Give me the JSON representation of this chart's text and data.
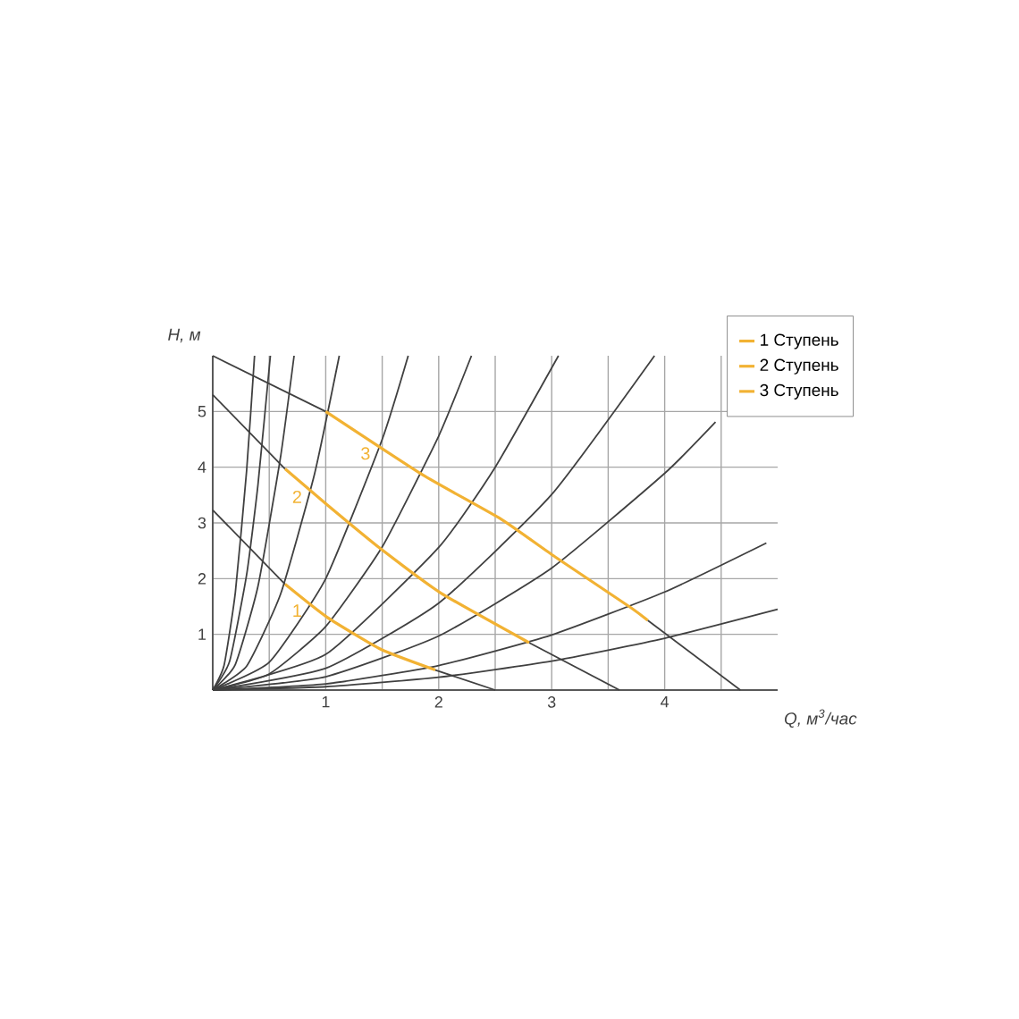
{
  "chart_data": {
    "type": "line",
    "xlabel": "*Q, м$^{3}$/час*",
    "ylabel": "*H, м*",
    "xlim": [
      0,
      5
    ],
    "ylim": [
      0,
      6
    ],
    "xticks": [
      {
        "value": 0.5,
        "label": null
      },
      1,
      {
        "value": 1.5,
        "label": null
      },
      2,
      {
        "value": 2.5,
        "label": null
      },
      3,
      {
        "value": 3.5,
        "label": null
      },
      4,
      {
        "value": 4.5,
        "label": null
      }
    ],
    "yticks": [
      1,
      2,
      3,
      4,
      5
    ],
    "grid": true,
    "legend": "top right",
    "marker": "none",
    "line_style": "solid",
    "series": [
      {
        "color": "#404040",
        "x": [
          0,
          0.1,
          0.2,
          0.3,
          0.37
        ],
        "values": [
          0,
          0.44,
          1.75,
          3.94,
          6.0
        ]
      },
      {
        "color": "#404040",
        "x": [
          0,
          0.15,
          0.3,
          0.4,
          0.51
        ],
        "values": [
          0,
          0.52,
          2.07,
          3.68,
          6.0
        ]
      },
      {
        "color": "#404040",
        "x": [
          0,
          0.2,
          0.4,
          0.6,
          0.72
        ],
        "values": [
          0,
          0.46,
          1.86,
          4.18,
          6.0
        ]
      },
      {
        "color": "#404040",
        "x": [
          0,
          0.3,
          0.6,
          0.9,
          1.12
        ],
        "values": [
          0,
          0.43,
          1.72,
          3.87,
          6.0
        ]
      },
      {
        "color": "#404040",
        "x": [
          0,
          0.5,
          1,
          1.5,
          1.73
        ],
        "values": [
          0,
          0.5,
          2.0,
          4.5,
          6.0
        ]
      },
      {
        "color": "#404040",
        "x": [
          0,
          0.5,
          1,
          1.5,
          2,
          2.29
        ],
        "values": [
          0,
          0.29,
          1.14,
          2.57,
          4.56,
          6.0
        ]
      },
      {
        "color": "#404040",
        "x": [
          0,
          1,
          2,
          2.5,
          3.06
        ],
        "values": [
          0,
          0.64,
          2.56,
          4.0,
          6.0
        ]
      },
      {
        "color": "#404040",
        "x": [
          0,
          1,
          2,
          3,
          3.91
        ],
        "values": [
          0,
          0.39,
          1.56,
          3.51,
          6.0
        ]
      },
      {
        "color": "#404040",
        "x": [
          0,
          1,
          2,
          3,
          4,
          4.45
        ],
        "values": [
          0,
          0.24,
          0.97,
          2.19,
          3.89,
          4.81
        ]
      },
      {
        "color": "#404040",
        "x": [
          0,
          1,
          2,
          3,
          4,
          4.9
        ],
        "values": [
          0,
          0.11,
          0.44,
          0.99,
          1.76,
          2.64
        ]
      },
      {
        "color": "#404040",
        "x": [
          0,
          1,
          2,
          3,
          4,
          5
        ],
        "values": [
          0,
          0.06,
          0.23,
          0.52,
          0.93,
          1.45
        ]
      },
      {
        "color": "#404040",
        "x": [
          0,
          0.64
        ],
        "values": [
          3.23,
          1.9
        ]
      },
      {
        "color": "#404040",
        "x": [
          1.97,
          2.5
        ],
        "values": [
          0.36,
          0
        ]
      },
      {
        "color": "#404040",
        "x": [
          0,
          0.64
        ],
        "values": [
          5.3,
          3.97
        ]
      },
      {
        "color": "#404040",
        "x": [
          2.8,
          3.6
        ],
        "values": [
          0.85,
          0
        ]
      },
      {
        "color": "#404040",
        "x": [
          0,
          1
        ],
        "values": [
          6.0,
          5.0
        ]
      },
      {
        "color": "#404040",
        "x": [
          3.85,
          4.67
        ],
        "values": [
          1.25,
          0
        ]
      },
      {
        "name": "1 Ступень",
        "color": "#f2b233",
        "x": [
          0.64,
          1.01,
          1.49,
          1.97
        ],
        "values": [
          1.9,
          1.31,
          0.73,
          0.36
        ]
      },
      {
        "name": "2 Ступень",
        "color": "#f2b233",
        "x": [
          0.64,
          1.01,
          1.49,
          2.02,
          2.8
        ],
        "values": [
          3.97,
          3.33,
          2.53,
          1.74,
          0.85
        ]
      },
      {
        "name": "3 Ступень",
        "color": "#f2b233",
        "x": [
          1.0,
          1.86,
          2.55,
          3.03,
          3.7,
          3.85
        ],
        "values": [
          5.0,
          3.86,
          3.07,
          2.39,
          1.48,
          1.25
        ]
      }
    ],
    "annotations": [
      "1",
      "2",
      "3"
    ]
  }
}
